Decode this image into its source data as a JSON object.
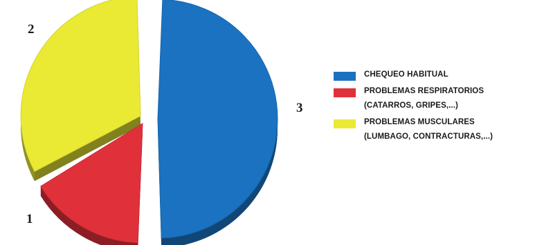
{
  "chart_data": {
    "type": "pie",
    "style": "3d-exploded",
    "categories": [
      "CHEQUEO HABITUAL",
      "PROBLEMAS RESPIRATORIOS (CATARROS, GRIPES,...)",
      "PROBLEMAS MUSCULARES (LUMBAGO, CONTRACTURAS,...)"
    ],
    "values": [
      3,
      1,
      2
    ],
    "slice_labels": [
      "3",
      "1",
      "2"
    ],
    "colors": [
      "#1a72c0",
      "#e0313b",
      "#eaea35"
    ],
    "legend_placement": "right",
    "title": "",
    "legend": [
      {
        "lines": [
          "CHEQUEO HABITUAL"
        ],
        "color": "#1a72c0"
      },
      {
        "lines": [
          "PROBLEMAS RESPIRATORIOS",
          "(CATARROS, GRIPES,...)"
        ],
        "color": "#e0313b"
      },
      {
        "lines": [
          "PROBLEMAS MUSCULARES",
          "(LUMBAGO, CONTRACTURAS,...)"
        ],
        "color": "#eaea35"
      }
    ]
  }
}
